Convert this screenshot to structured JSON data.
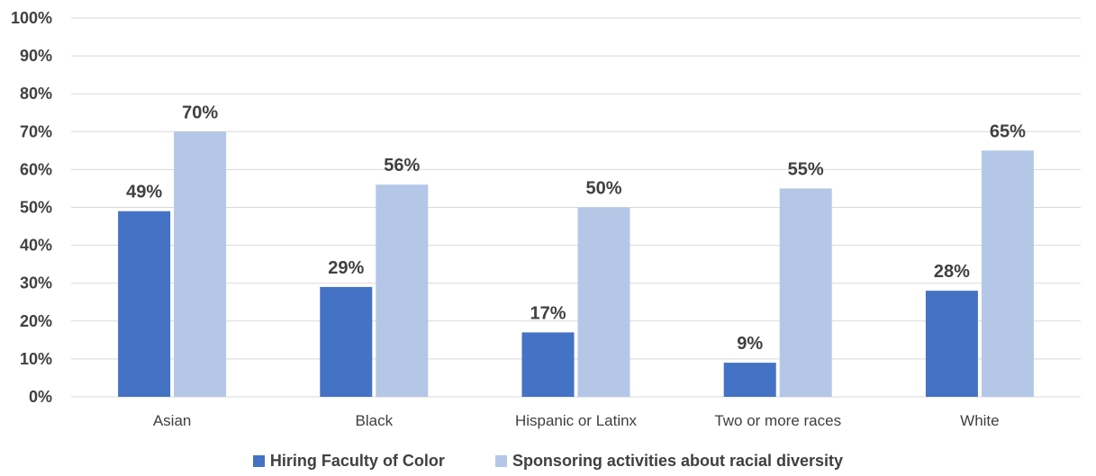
{
  "chart_data": {
    "type": "bar",
    "categories": [
      "Asian",
      "Black",
      "Hispanic or Latinx",
      "Two or more races",
      "White"
    ],
    "series": [
      {
        "name": "Hiring Faculty of Color",
        "values": [
          49,
          29,
          17,
          9,
          28
        ],
        "color": "#4472C4"
      },
      {
        "name": "Sponsoring activities about racial diversity",
        "values": [
          70,
          56,
          50,
          55,
          65
        ],
        "color": "#B4C7E7"
      }
    ],
    "data_labels": [
      [
        "49%",
        "29%",
        "17%",
        "9%",
        "28%"
      ],
      [
        "70%",
        "56%",
        "50%",
        "55%",
        "65%"
      ]
    ],
    "y_ticks": [
      "0%",
      "10%",
      "20%",
      "30%",
      "40%",
      "50%",
      "60%",
      "70%",
      "80%",
      "90%",
      "100%"
    ],
    "ylim": [
      0,
      100
    ],
    "grid": true,
    "gridline_color": "#D9D9D9",
    "legend_position": "bottom"
  }
}
